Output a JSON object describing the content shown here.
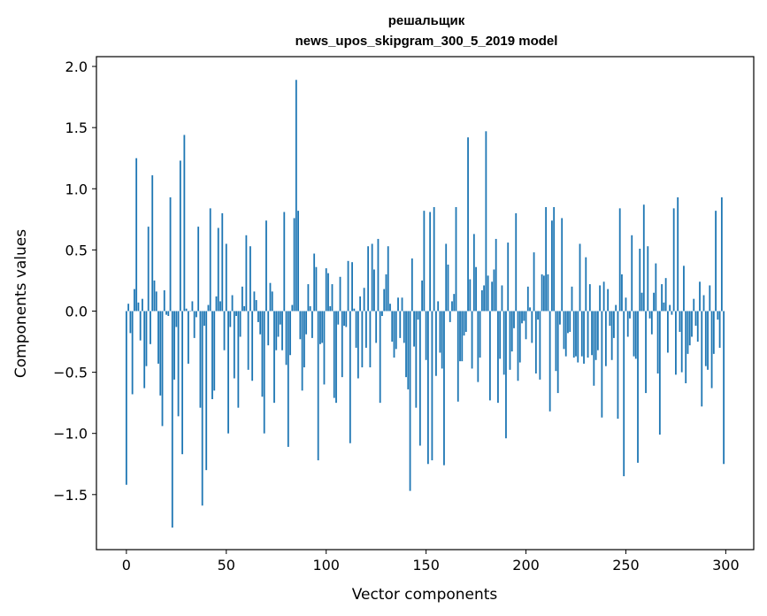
{
  "chart_data": {
    "type": "bar",
    "title_lines": [
      "решальщик",
      "news_upos_skipgram_300_5_2019 model"
    ],
    "xlabel": "Vector components",
    "ylabel": "Components values",
    "xlim": [
      -15,
      314
    ],
    "ylim": [
      -1.95,
      2.08
    ],
    "x_ticks": [
      0,
      50,
      100,
      150,
      200,
      250,
      300
    ],
    "y_ticks": [
      -1.5,
      -1.0,
      -0.5,
      0.0,
      0.5,
      1.0,
      1.5,
      2.0
    ],
    "y_tick_labels": [
      "−1.5",
      "−1.0",
      "−0.5",
      "0.0",
      "0.5",
      "1.0",
      "1.5",
      "2.0"
    ],
    "bar_color": "#1f77b4",
    "grid": false,
    "series": [
      {
        "values": [
          -1.42,
          0.06,
          -0.18,
          -0.68,
          0.18,
          1.25,
          0.07,
          -0.24,
          0.1,
          -0.63,
          -0.45,
          0.69,
          -0.27,
          1.11,
          0.25,
          0.16,
          -0.43,
          -0.69,
          -0.94,
          0.17,
          -0.03,
          -0.04,
          0.93,
          -1.77,
          -0.56,
          -0.13,
          -0.86,
          1.23,
          -1.17,
          1.44,
          0.02,
          -0.43,
          0.0,
          0.08,
          -0.22,
          -0.05,
          0.69,
          -0.79,
          -1.59,
          -0.12,
          -1.3,
          0.05,
          0.84,
          -0.72,
          -0.65,
          0.12,
          0.68,
          0.08,
          0.8,
          -0.32,
          0.55,
          -1.0,
          -0.13,
          0.13,
          -0.55,
          -0.04,
          -0.79,
          -0.21,
          0.2,
          0.04,
          0.62,
          -0.48,
          0.53,
          -0.57,
          0.16,
          0.09,
          -0.09,
          -0.19,
          -0.7,
          -1.0,
          0.74,
          -0.28,
          0.23,
          0.16,
          -0.75,
          -0.32,
          -0.21,
          -0.11,
          -0.32,
          0.81,
          -0.44,
          -1.11,
          -0.36,
          0.05,
          0.76,
          1.89,
          0.82,
          -0.23,
          -0.65,
          -0.46,
          -0.19,
          0.22,
          0.04,
          -0.22,
          0.47,
          0.36,
          -1.22,
          -0.27,
          -0.26,
          -0.6,
          0.35,
          0.31,
          0.04,
          0.22,
          -0.71,
          -0.75,
          -0.11,
          0.28,
          -0.54,
          -0.12,
          -0.13,
          0.41,
          -1.08,
          0.4,
          0.02,
          -0.3,
          -0.55,
          0.12,
          -0.46,
          0.19,
          -0.3,
          0.53,
          -0.46,
          0.55,
          0.34,
          -0.26,
          0.59,
          -0.75,
          -0.04,
          0.18,
          0.3,
          0.53,
          0.06,
          -0.25,
          -0.38,
          -0.31,
          0.11,
          -0.22,
          0.11,
          -0.26,
          -0.54,
          -0.64,
          -1.47,
          0.43,
          -0.29,
          -0.79,
          -0.07,
          -1.1,
          0.25,
          0.82,
          -0.4,
          -1.25,
          0.81,
          -1.22,
          0.85,
          -0.53,
          0.08,
          -0.34,
          -0.47,
          -1.26,
          0.55,
          0.38,
          -0.09,
          0.08,
          0.14,
          0.85,
          -0.74,
          -0.41,
          -0.41,
          -0.2,
          -0.17,
          1.42,
          0.26,
          -0.47,
          0.63,
          0.36,
          -0.58,
          -0.38,
          0.17,
          0.21,
          1.47,
          0.29,
          -0.73,
          0.24,
          0.34,
          0.59,
          -0.75,
          -0.39,
          0.21,
          -0.52,
          -1.04,
          0.56,
          -0.48,
          -0.33,
          -0.14,
          0.8,
          -0.57,
          -0.42,
          -0.1,
          -0.08,
          -0.23,
          0.2,
          0.03,
          -0.26,
          0.48,
          -0.51,
          -0.07,
          -0.56,
          0.3,
          0.29,
          0.85,
          0.3,
          -0.82,
          0.74,
          0.85,
          -0.49,
          -0.67,
          -0.11,
          0.76,
          -0.31,
          -0.37,
          -0.18,
          -0.17,
          0.2,
          -0.38,
          -0.37,
          -0.42,
          0.55,
          -0.37,
          -0.43,
          0.44,
          -0.38,
          0.22,
          -0.36,
          -0.61,
          -0.4,
          -0.32,
          0.21,
          -0.87,
          0.24,
          -0.45,
          0.18,
          -0.12,
          -0.4,
          -0.22,
          0.05,
          -0.88,
          0.84,
          0.3,
          -1.35,
          0.11,
          -0.21,
          -0.06,
          0.62,
          -0.37,
          -0.39,
          -1.24,
          0.51,
          0.15,
          0.87,
          -0.67,
          0.53,
          -0.06,
          -0.19,
          0.15,
          0.39,
          -0.51,
          -1.01,
          0.22,
          0.07,
          0.27,
          -0.34,
          0.05,
          -0.03,
          0.84,
          -0.52,
          0.93,
          -0.17,
          -0.5,
          0.37,
          -0.59,
          -0.35,
          -0.28,
          -0.21,
          0.1,
          -0.12,
          -0.25,
          0.24,
          -0.78,
          0.13,
          -0.45,
          -0.48,
          0.21,
          -0.63,
          -0.35,
          0.82,
          -0.07,
          -0.3,
          0.93,
          -1.25
        ]
      }
    ]
  }
}
